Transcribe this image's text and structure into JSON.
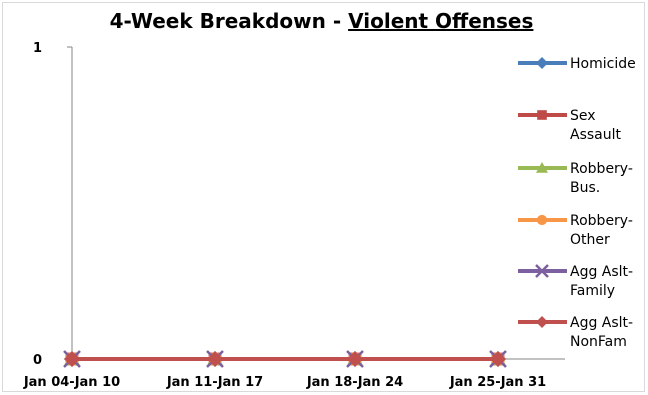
{
  "chart_data": {
    "type": "line",
    "title_prefix": "4-Week Breakdown - ",
    "title_emphasis": "Violent Offenses",
    "categories": [
      "Jan 04-Jan 10",
      "Jan 11-Jan 17",
      "Jan 18-Jan 24",
      "Jan 25-Jan 31"
    ],
    "y_ticks": [
      "0",
      "1"
    ],
    "ylim": [
      0,
      1
    ],
    "grid": false,
    "legend_position": "right",
    "series": [
      {
        "name": "Homicide",
        "lines": [
          "Homicide"
        ],
        "color": "#4a7ebb",
        "marker": "diamond",
        "values": [
          0,
          0,
          0,
          0
        ]
      },
      {
        "name": "Sex Assault",
        "lines": [
          "Sex",
          "Assault"
        ],
        "color": "#be4b48",
        "marker": "square",
        "values": [
          0,
          0,
          0,
          0
        ]
      },
      {
        "name": "Robbery-Bus.",
        "lines": [
          "Robbery-",
          "Bus."
        ],
        "color": "#98b954",
        "marker": "triangle",
        "values": [
          0,
          0,
          0,
          0
        ]
      },
      {
        "name": "Robbery-Other",
        "lines": [
          "Robbery-",
          "Other"
        ],
        "color": "#f79646",
        "marker": "circle",
        "values": [
          0,
          0,
          0,
          0
        ]
      },
      {
        "name": "Agg Aslt-Family",
        "lines": [
          "Agg Aslt-",
          "Family"
        ],
        "color": "#7d60a0",
        "marker": "x",
        "values": [
          0,
          0,
          0,
          0
        ]
      },
      {
        "name": "Agg Aslt-NonFam",
        "lines": [
          "Agg Aslt-",
          "NonFam"
        ],
        "color": "#c0504d",
        "marker": "diamond",
        "values": [
          0,
          0,
          0,
          0
        ]
      }
    ]
  }
}
